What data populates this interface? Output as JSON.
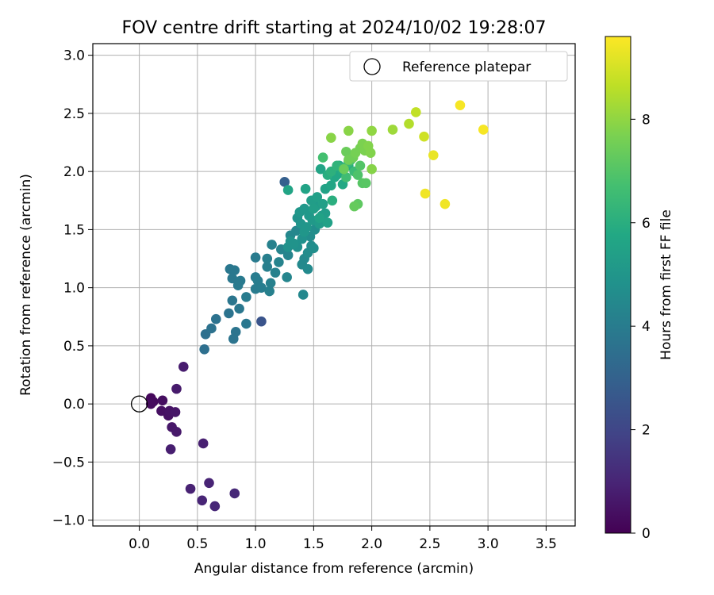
{
  "chart_data": {
    "type": "scatter",
    "title": "FOV centre drift starting at 2024/10/02 19:28:07",
    "xlabel": "Angular distance from reference (arcmin)",
    "ylabel": "Rotation from reference (arcmin)",
    "xlim": [
      -0.4,
      3.75
    ],
    "ylim": [
      -1.05,
      3.1
    ],
    "xticks": [
      0.0,
      0.5,
      1.0,
      1.5,
      2.0,
      2.5,
      3.0,
      3.5
    ],
    "xtick_labels": [
      "0.0",
      "0.5",
      "1.0",
      "1.5",
      "2.0",
      "2.5",
      "3.0",
      "3.5"
    ],
    "yticks": [
      -1.0,
      -0.5,
      0.0,
      0.5,
      1.0,
      1.5,
      2.0,
      2.5,
      3.0
    ],
    "ytick_labels": [
      "−1.0",
      "−0.5",
      "0.0",
      "0.5",
      "1.0",
      "1.5",
      "2.0",
      "2.5",
      "3.0"
    ],
    "grid": true,
    "legend": {
      "entries": [
        "Reference platepar"
      ],
      "position": "top-right"
    },
    "colorbar": {
      "label": "Hours from first FF file",
      "colormap": "viridis",
      "range": [
        0,
        9.6
      ],
      "ticks": [
        0,
        2,
        4,
        6,
        8
      ],
      "tick_labels": [
        "0",
        "2",
        "4",
        "6",
        "8"
      ]
    },
    "reference_point": {
      "x": 0.0,
      "y": 0.0,
      "label": "Reference platepar"
    },
    "series": [
      {
        "points": [
          [
            0.1,
            0.05,
            0.2
          ],
          [
            0.12,
            0.02,
            0.25
          ],
          [
            0.1,
            0.0,
            0.3
          ],
          [
            0.2,
            0.03,
            0.35
          ],
          [
            0.19,
            -0.06,
            0.4
          ],
          [
            0.25,
            -0.1,
            0.45
          ],
          [
            0.26,
            -0.06,
            0.5
          ],
          [
            0.31,
            -0.07,
            0.55
          ],
          [
            0.28,
            -0.2,
            0.6
          ],
          [
            0.32,
            -0.24,
            0.65
          ],
          [
            0.32,
            0.13,
            0.7
          ],
          [
            0.38,
            0.32,
            0.75
          ],
          [
            0.27,
            -0.39,
            0.8
          ],
          [
            0.55,
            -0.34,
            0.85
          ],
          [
            0.44,
            -0.73,
            0.9
          ],
          [
            0.6,
            -0.68,
            0.95
          ],
          [
            0.54,
            -0.83,
            1.0
          ],
          [
            0.65,
            -0.88,
            1.05
          ],
          [
            0.82,
            -0.77,
            1.1
          ],
          [
            1.05,
            0.71,
            2.5
          ],
          [
            1.25,
            1.91,
            2.9
          ],
          [
            0.56,
            0.47,
            3.5
          ],
          [
            0.57,
            0.6,
            3.55
          ],
          [
            0.62,
            0.65,
            3.6
          ],
          [
            0.66,
            0.73,
            3.6
          ],
          [
            0.77,
            0.78,
            3.65
          ],
          [
            0.81,
            0.56,
            3.7
          ],
          [
            0.83,
            0.62,
            3.7
          ],
          [
            0.8,
            0.89,
            3.75
          ],
          [
            0.86,
            0.82,
            3.8
          ],
          [
            0.92,
            0.69,
            3.8
          ],
          [
            0.78,
            1.16,
            3.8
          ],
          [
            0.82,
            1.15,
            3.85
          ],
          [
            0.8,
            1.08,
            3.85
          ],
          [
            0.85,
            1.02,
            3.9
          ],
          [
            0.87,
            1.06,
            3.9
          ],
          [
            0.92,
            0.92,
            3.95
          ],
          [
            1.0,
            1.26,
            3.95
          ],
          [
            1.0,
            1.09,
            4.0
          ],
          [
            1.0,
            0.99,
            4.0
          ],
          [
            1.02,
            1.06,
            4.05
          ],
          [
            1.05,
            1.0,
            4.05
          ],
          [
            1.1,
            1.25,
            4.1
          ],
          [
            1.1,
            1.18,
            4.1
          ],
          [
            1.12,
            0.97,
            4.15
          ],
          [
            1.13,
            1.04,
            4.15
          ],
          [
            1.14,
            1.37,
            4.2
          ],
          [
            1.17,
            1.13,
            4.2
          ],
          [
            1.2,
            1.22,
            4.25
          ],
          [
            1.22,
            1.33,
            4.3
          ],
          [
            1.28,
            1.28,
            4.3
          ],
          [
            1.27,
            1.09,
            4.35
          ],
          [
            1.3,
            1.45,
            4.4
          ],
          [
            1.35,
            1.49,
            4.4
          ],
          [
            1.41,
            0.94,
            4.45
          ],
          [
            1.4,
            1.2,
            4.5
          ],
          [
            1.42,
            1.25,
            4.5
          ],
          [
            1.45,
            1.16,
            4.55
          ],
          [
            1.45,
            1.3,
            4.6
          ],
          [
            1.48,
            1.36,
            4.6
          ],
          [
            1.47,
            1.44,
            4.65
          ],
          [
            1.5,
            1.34,
            4.7
          ],
          [
            1.51,
            1.5,
            4.7
          ],
          [
            1.36,
            1.35,
            4.75
          ],
          [
            1.4,
            1.42,
            4.8
          ],
          [
            1.28,
            1.35,
            4.8
          ],
          [
            1.3,
            1.4,
            4.85
          ],
          [
            1.33,
            1.38,
            4.9
          ],
          [
            1.36,
            1.6,
            4.9
          ],
          [
            1.39,
            1.55,
            4.95
          ],
          [
            1.42,
            1.48,
            5.0
          ],
          [
            1.44,
            1.52,
            5.0
          ],
          [
            1.38,
            1.65,
            5.05
          ],
          [
            1.42,
            1.68,
            5.1
          ],
          [
            1.46,
            1.62,
            5.1
          ],
          [
            1.49,
            1.58,
            5.15
          ],
          [
            1.52,
            1.7,
            5.2
          ],
          [
            1.55,
            1.55,
            5.2
          ],
          [
            1.57,
            1.62,
            5.25
          ],
          [
            1.6,
            1.64,
            5.3
          ],
          [
            1.48,
            1.75,
            5.3
          ],
          [
            1.5,
            1.68,
            5.35
          ],
          [
            1.53,
            1.78,
            5.4
          ],
          [
            1.58,
            1.72,
            5.4
          ],
          [
            1.62,
            1.56,
            5.45
          ],
          [
            1.55,
            1.6,
            5.5
          ],
          [
            1.6,
            1.85,
            5.5
          ],
          [
            1.43,
            1.85,
            5.55
          ],
          [
            1.28,
            1.84,
            5.6
          ],
          [
            1.56,
            2.02,
            5.6
          ],
          [
            1.65,
            1.88,
            5.65
          ],
          [
            1.68,
            1.95,
            5.7
          ],
          [
            1.7,
            1.97,
            5.7
          ],
          [
            1.75,
            1.89,
            5.75
          ],
          [
            1.72,
            2.05,
            5.8
          ],
          [
            1.75,
            2.0,
            5.85
          ],
          [
            1.8,
            2.05,
            5.9
          ],
          [
            1.62,
            1.97,
            5.95
          ],
          [
            1.66,
            1.75,
            6.0
          ],
          [
            1.65,
            2.0,
            6.1
          ],
          [
            1.7,
            2.05,
            6.2
          ],
          [
            1.75,
            2.03,
            6.3
          ],
          [
            1.8,
            2.08,
            6.4
          ],
          [
            1.85,
            2.0,
            6.5
          ],
          [
            1.78,
            1.95,
            6.6
          ],
          [
            1.58,
            2.12,
            6.7
          ],
          [
            1.82,
            2.1,
            6.8
          ],
          [
            1.88,
            1.97,
            6.9
          ],
          [
            1.9,
            2.05,
            7.0
          ],
          [
            1.92,
            1.9,
            7.05
          ],
          [
            1.95,
            1.9,
            7.1
          ],
          [
            1.88,
            1.72,
            7.2
          ],
          [
            1.85,
            1.7,
            7.3
          ],
          [
            1.76,
            2.02,
            7.4
          ],
          [
            1.78,
            2.17,
            7.4
          ],
          [
            1.8,
            2.1,
            7.5
          ],
          [
            1.84,
            2.12,
            7.5
          ],
          [
            1.86,
            2.16,
            7.6
          ],
          [
            1.9,
            2.2,
            7.6
          ],
          [
            1.92,
            2.24,
            7.7
          ],
          [
            1.94,
            2.18,
            7.7
          ],
          [
            1.97,
            2.22,
            7.8
          ],
          [
            1.99,
            2.16,
            7.8
          ],
          [
            2.0,
            2.02,
            7.85
          ],
          [
            1.8,
            2.35,
            7.9
          ],
          [
            1.65,
            2.29,
            7.9
          ],
          [
            2.0,
            2.35,
            8.0
          ],
          [
            2.18,
            2.36,
            8.2
          ],
          [
            2.32,
            2.41,
            8.5
          ],
          [
            2.38,
            2.51,
            8.7
          ],
          [
            2.45,
            2.3,
            8.9
          ],
          [
            2.53,
            2.14,
            9.3
          ],
          [
            2.46,
            1.81,
            9.4
          ],
          [
            2.63,
            1.72,
            9.4
          ],
          [
            2.76,
            2.57,
            9.5
          ],
          [
            2.96,
            2.36,
            9.5
          ]
        ]
      }
    ]
  }
}
